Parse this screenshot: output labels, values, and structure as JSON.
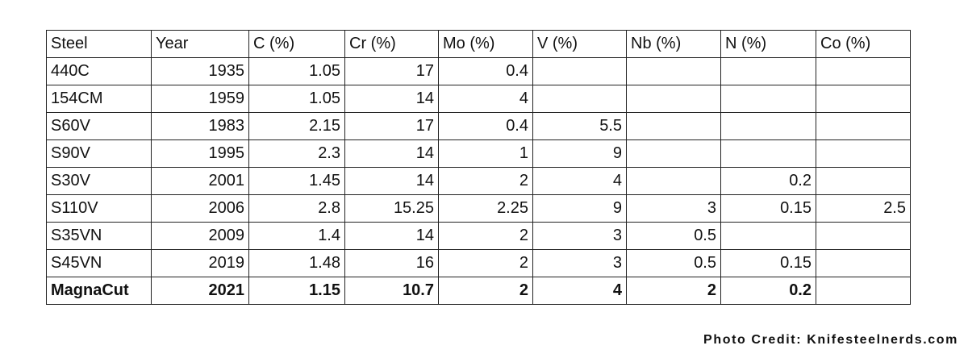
{
  "table": {
    "header": [
      "Steel",
      "Year",
      "C (%)",
      "Cr (%)",
      "Mo (%)",
      "V (%)",
      "Nb (%)",
      "N (%)",
      "Co (%)"
    ],
    "rows": [
      [
        "440C",
        "1935",
        "1.05",
        "17",
        "0.4",
        null,
        null,
        null,
        null
      ],
      [
        "154CM",
        "1959",
        "1.05",
        "14",
        "4",
        null,
        null,
        null,
        null
      ],
      [
        "S60V",
        "1983",
        "2.15",
        "17",
        "0.4",
        "5.5",
        null,
        null,
        null
      ],
      [
        "S90V",
        "1995",
        "2.3",
        "14",
        "1",
        "9",
        null,
        null,
        null
      ],
      [
        "S30V",
        "2001",
        "1.45",
        "14",
        "2",
        "4",
        null,
        "0.2",
        null
      ],
      [
        "S110V",
        "2006",
        "2.8",
        "15.25",
        "2.25",
        "9",
        "3",
        "0.15",
        "2.5"
      ],
      [
        "S35VN",
        "2009",
        "1.4",
        "14",
        "2",
        "3",
        "0.5",
        null,
        null
      ],
      [
        "S45VN",
        "2019",
        "1.48",
        "16",
        "2",
        "3",
        "0.5",
        "0.15",
        null
      ],
      [
        "MagnaCut",
        "2021",
        "1.15",
        "10.7",
        "2",
        "4",
        "2",
        "0.2",
        null
      ]
    ]
  },
  "credit": "Photo Credit: Knifesteelnerds.com"
}
